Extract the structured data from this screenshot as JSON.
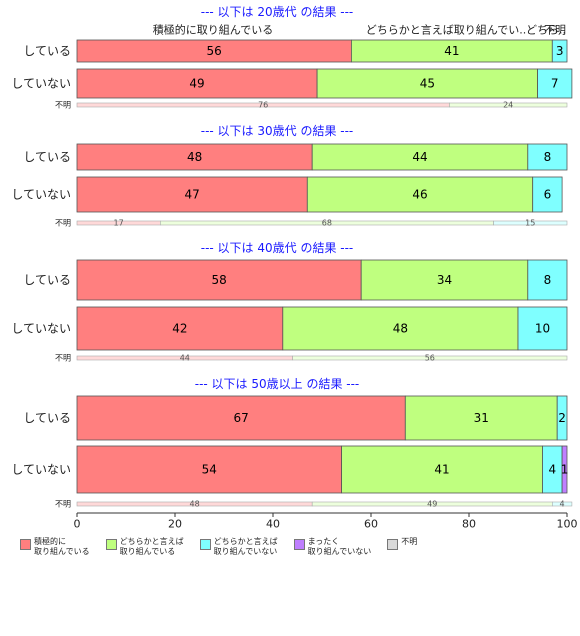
{
  "chart_data": {
    "type": "bar",
    "orientation": "horizontal",
    "stacked": "percent",
    "xlim": [
      0,
      100
    ],
    "xticks": [
      0,
      20,
      40,
      60,
      80,
      100
    ],
    "legend_position": "bottom",
    "categories": [
      {
        "key": "c1",
        "name": "積極的に\n取り組んでいる",
        "color": "#ff7f7f",
        "light": "#ffd9d9"
      },
      {
        "key": "c2",
        "name": "どちらかと言えば\n取り組んでいる",
        "color": "#bfff7f",
        "light": "#edffdd"
      },
      {
        "key": "c3",
        "name": "どちらかと言えば\n取り組んでいない",
        "color": "#7fffff",
        "light": "#ddffff"
      },
      {
        "key": "c4",
        "name": "まったく\n取り組んでいない",
        "color": "#bf7fff",
        "light": "#eedcff"
      },
      {
        "key": "c5",
        "name": "不明",
        "color": "#d9d9d9",
        "light": "#f0f0f0"
      }
    ],
    "groups": [
      {
        "title": "--- 以下は 20歳代 の結果 ---",
        "header_labels": [
          "積極的に取り組んでいる",
          "どちらかと言えば取り組んでい..",
          "どちら..",
          "不明"
        ],
        "rows": [
          {
            "label": "している",
            "values": [
              56,
              41,
              3,
              0,
              0
            ],
            "value_labels": [
              "56",
              "41",
              "3",
              "",
              ""
            ]
          },
          {
            "label": "していない",
            "values": [
              49,
              45,
              7,
              0,
              0
            ],
            "value_labels": [
              "49",
              "45",
              "7",
              "",
              ""
            ]
          }
        ],
        "unknown": {
          "label": "不明",
          "values": [
            76,
            24,
            0,
            0,
            0
          ],
          "value_labels": [
            "76",
            "24",
            "",
            "",
            ""
          ]
        }
      },
      {
        "title": "--- 以下は 30歳代 の結果 ---",
        "rows": [
          {
            "label": "している",
            "values": [
              48,
              44,
              8,
              0,
              0
            ],
            "value_labels": [
              "48",
              "44",
              "8",
              "",
              ""
            ]
          },
          {
            "label": "していない",
            "values": [
              47,
              46,
              6,
              0,
              0
            ],
            "value_labels": [
              "47",
              "46",
              "6",
              "",
              ""
            ]
          }
        ],
        "unknown": {
          "label": "不明",
          "values": [
            17,
            68,
            15,
            0,
            0
          ],
          "value_labels": [
            "17",
            "68",
            "15",
            "",
            ""
          ]
        }
      },
      {
        "title": "--- 以下は 40歳代 の結果 ---",
        "rows": [
          {
            "label": "している",
            "values": [
              58,
              34,
              8,
              0,
              0
            ],
            "value_labels": [
              "58",
              "34",
              "8",
              "",
              ""
            ]
          },
          {
            "label": "していない",
            "values": [
              42,
              48,
              10,
              0,
              0
            ],
            "value_labels": [
              "42",
              "48",
              "10",
              "",
              ""
            ]
          }
        ],
        "unknown": {
          "label": "不明",
          "values": [
            44,
            56,
            0,
            0,
            0
          ],
          "value_labels": [
            "44",
            "56",
            "",
            "",
            ""
          ]
        }
      },
      {
        "title": "--- 以下は 50歳以上 の結果 ---",
        "rows": [
          {
            "label": "している",
            "values": [
              67,
              31,
              2,
              0,
              0
            ],
            "value_labels": [
              "67",
              "31",
              "2",
              "",
              ""
            ]
          },
          {
            "label": "していない",
            "values": [
              54,
              41,
              4,
              1,
              0
            ],
            "value_labels": [
              "54",
              "41",
              "4",
              "1",
              ""
            ]
          }
        ],
        "unknown": {
          "label": "不明",
          "values": [
            48,
            49,
            4,
            0,
            0
          ],
          "value_labels": [
            "48",
            "49",
            "4",
            "",
            ""
          ]
        }
      }
    ]
  }
}
